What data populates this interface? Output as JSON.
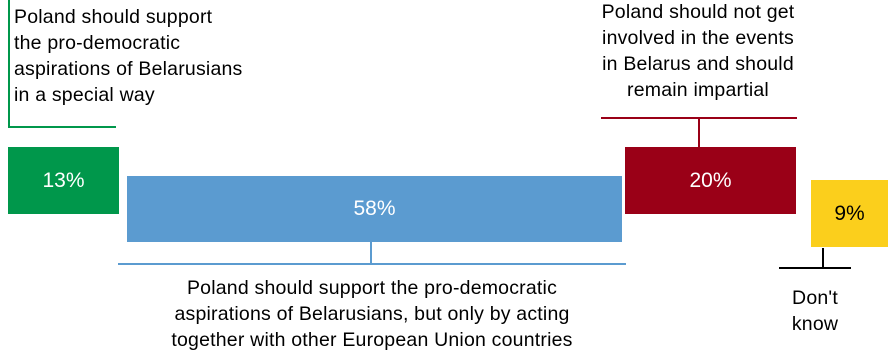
{
  "chart_data": {
    "type": "bar",
    "categories": [
      "Poland should support the pro-democratic aspirations of Belarusians in a special way",
      "Poland should support the pro-democratic aspirations of Belarusians, but only by acting together with other European Union countries",
      "Poland should not get involved in the events in Belarus and should remain impartial",
      "Don't know"
    ],
    "values": [
      13,
      58,
      20,
      9
    ],
    "value_labels": [
      "13%",
      "58%",
      "20%",
      "9%"
    ],
    "colors": [
      "#00974b",
      "#5b9bd0",
      "#9a0017",
      "#fbcf1c"
    ],
    "labels": {
      "special": [
        "Poland should  support",
        "the pro-democratic",
        "aspirations of Belarusians",
        "in a special way"
      ],
      "eu": [
        "Poland should support the pro-democratic",
        "aspirations of Belarusians, but only by acting",
        "together with other European Union countries"
      ],
      "impartial": [
        "Poland should not get",
        "involved in the events",
        "in Belarus and should",
        "remain impartial"
      ],
      "dontknow": [
        "Don't",
        "know"
      ]
    }
  }
}
